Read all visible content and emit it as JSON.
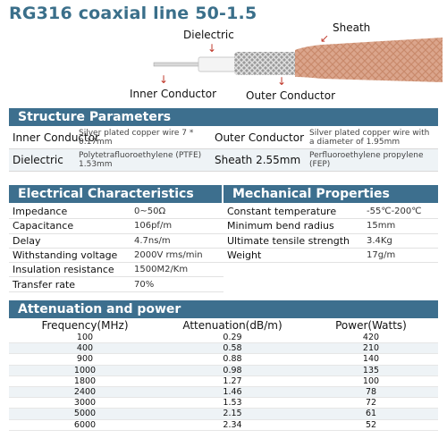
{
  "title": "RG316 coaxial line 50-1.5",
  "diagram": {
    "dielectric": "Dielectric",
    "sheath": "Sheath",
    "inner_conductor": "Inner Conductor",
    "outer_conductor": "Outer Conductor"
  },
  "structure": {
    "header": "Structure Parameters",
    "rows": [
      {
        "k1": "Inner Conductor",
        "v1": "Silver plated copper wire 7 * 0.17mm",
        "k2": "Outer Conductor",
        "v2": "Silver plated copper wire with a diameter of 1.95mm"
      },
      {
        "k1": "Dielectric",
        "v1": "Polytetrafluoroethylene (PTFE) 1.53mm",
        "k2": "Sheath 2.55mm",
        "v2": "Perfluoroethylene propylene (FEP)"
      }
    ]
  },
  "electrical": {
    "header": "Electrical Characteristics",
    "rows": [
      {
        "k": "Impedance",
        "v": "0~50Ω"
      },
      {
        "k": "Capacitance",
        "v": "106pf/m"
      },
      {
        "k": "Delay",
        "v": "4.7ns/m"
      },
      {
        "k": "Withstanding voltage",
        "v": "2000V rms/min"
      },
      {
        "k": "Insulation resistance",
        "v": "1500M2/Km"
      },
      {
        "k": "Transfer rate",
        "v": "70%"
      }
    ]
  },
  "mechanical": {
    "header": "Mechanical Properties",
    "rows": [
      {
        "k": "Constant temperature",
        "v": "-55℃-200℃"
      },
      {
        "k": "Minimum bend radius",
        "v": "15mm"
      },
      {
        "k": "Ultimate tensile strength",
        "v": "3.4Kg"
      },
      {
        "k": "Weight",
        "v": "17g/m"
      }
    ]
  },
  "attenuation": {
    "header": "Attenuation and power",
    "columns": [
      "Frequency(MHz)",
      "Attenuation(dB/m)",
      "Power(Watts)"
    ],
    "rows": [
      [
        "100",
        "0.29",
        "420"
      ],
      [
        "400",
        "0.58",
        "210"
      ],
      [
        "900",
        "0.88",
        "140"
      ],
      [
        "1000",
        "0.98",
        "135"
      ],
      [
        "1800",
        "1.27",
        "100"
      ],
      [
        "2400",
        "1.46",
        "78"
      ],
      [
        "3000",
        "1.53",
        "72"
      ],
      [
        "5000",
        "2.15",
        "61"
      ],
      [
        "6000",
        "2.34",
        "52"
      ]
    ]
  },
  "colors": {
    "header_bg": "#3d6f8e",
    "title": "#3a6f8a",
    "sheath": "#d9a890"
  }
}
